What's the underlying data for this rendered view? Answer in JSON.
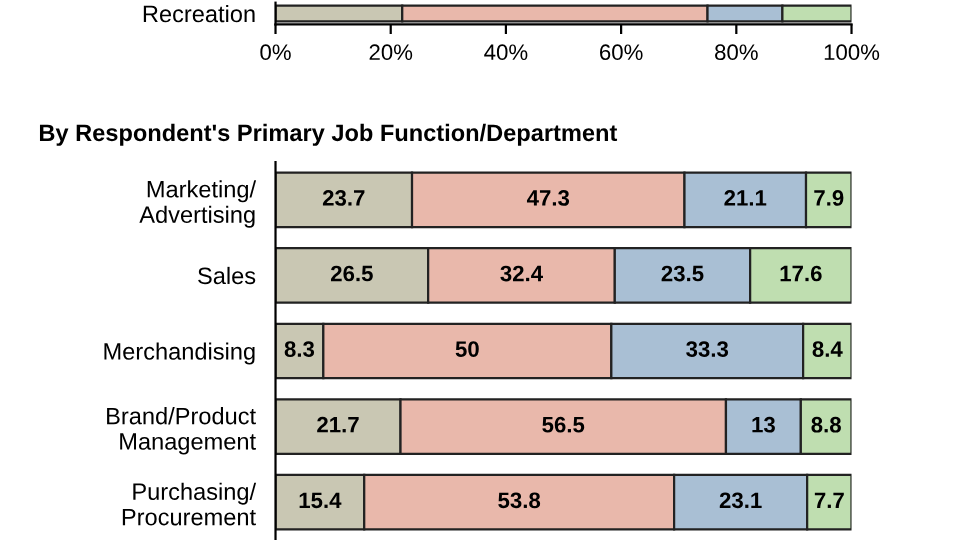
{
  "chart_data": [
    {
      "type": "bar",
      "orientation": "horizontal",
      "stacked": true,
      "categories": [
        "Recreation"
      ],
      "series": [
        {
          "color": "#c9c7b3",
          "values": [
            22
          ]
        },
        {
          "color": "#e9b8ab",
          "values": [
            53
          ]
        },
        {
          "color": "#a9bfd4",
          "values": [
            13
          ]
        },
        {
          "color": "#bfdeb0",
          "values": [
            12
          ]
        }
      ],
      "xlim": [
        0,
        100
      ],
      "xticks": [
        {
          "value": 0,
          "label": "0%"
        },
        {
          "value": 20,
          "label": "20%"
        },
        {
          "value": 40,
          "label": "40%"
        },
        {
          "value": 60,
          "label": "60%"
        },
        {
          "value": 80,
          "label": "80%"
        },
        {
          "value": 100,
          "label": "100%"
        }
      ],
      "grid": false,
      "legend": false
    },
    {
      "type": "bar",
      "orientation": "horizontal",
      "stacked": true,
      "title": "By Respondent's Primary Job Function/Department",
      "categories": [
        "Marketing/\nAdvertising",
        "Sales",
        "Merchandising",
        "Brand/Product\nManagement",
        "Purchasing/\nProcurement"
      ],
      "series": [
        {
          "color": "#c9c7b3",
          "values": [
            23.7,
            26.5,
            8.3,
            21.7,
            15.4
          ]
        },
        {
          "color": "#e9b8ab",
          "values": [
            47.3,
            32.4,
            50,
            56.5,
            53.8
          ]
        },
        {
          "color": "#a9bfd4",
          "values": [
            21.1,
            23.5,
            33.3,
            13,
            23.1
          ]
        },
        {
          "color": "#bfdeb0",
          "values": [
            7.9,
            17.6,
            8.4,
            8.8,
            7.7
          ]
        }
      ],
      "xlim": [
        0,
        100
      ],
      "tick_labels": "y",
      "data_labels": true,
      "grid": false,
      "legend": false
    }
  ]
}
